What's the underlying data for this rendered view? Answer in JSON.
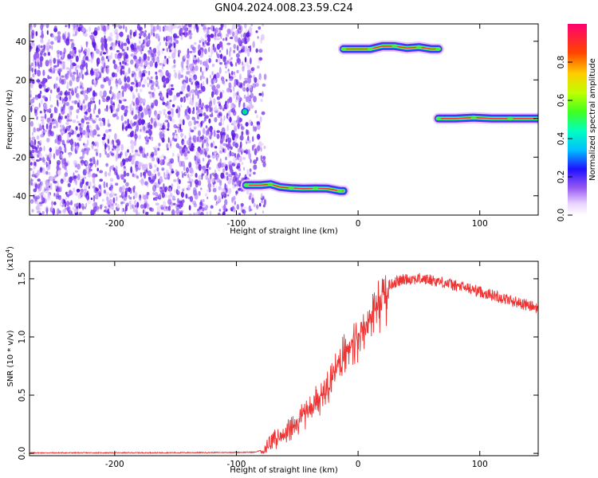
{
  "figure": {
    "title": "GN04.2024.008.23.59.C24"
  },
  "chart_data": [
    {
      "type": "heatmap",
      "name": "spectrogram",
      "xlabel": "Height of straight line (km)",
      "ylabel": "Frequency (Hz)",
      "xlim": [
        -270,
        148
      ],
      "ylim": [
        -50,
        49
      ],
      "x_ticks": [
        -200,
        -100,
        0,
        100
      ],
      "y_ticks": [
        -40,
        -20,
        0,
        20,
        40
      ],
      "noise_region": {
        "x_range": [
          -270,
          -88
        ],
        "y_range": [
          -50,
          49
        ]
      },
      "tracks": [
        {
          "x_start": -92,
          "x_end": -12,
          "points": [
            [
              -92,
              -34.5
            ],
            [
              -80,
              -34.5
            ],
            [
              -72,
              -34
            ],
            [
              -64,
              -35.5
            ],
            [
              -55,
              -36
            ],
            [
              -45,
              -36.3
            ],
            [
              -35,
              -36.2
            ],
            [
              -25,
              -36.3
            ],
            [
              -15,
              -37.5
            ],
            [
              -12,
              -37.5
            ]
          ]
        },
        {
          "x_start": -12,
          "x_end": 66,
          "points": [
            [
              -12,
              36
            ],
            [
              0,
              36
            ],
            [
              10,
              36
            ],
            [
              20,
              37.5
            ],
            [
              30,
              37.5
            ],
            [
              40,
              36.5
            ],
            [
              50,
              37
            ],
            [
              60,
              36
            ],
            [
              66,
              36
            ]
          ]
        },
        {
          "x_start": 66,
          "x_end": 148,
          "points": [
            [
              66,
              0
            ],
            [
              80,
              0
            ],
            [
              95,
              0.5
            ],
            [
              110,
              0
            ],
            [
              125,
              0
            ],
            [
              140,
              0
            ],
            [
              148,
              0
            ]
          ]
        }
      ],
      "markers": [
        {
          "x": -93,
          "y": 3.5
        }
      ],
      "colorbar": {
        "label": "Normalized spectral amplitude",
        "range": [
          0,
          1
        ],
        "ticks": [
          0.0,
          0.2,
          0.4,
          0.6,
          0.8
        ]
      }
    },
    {
      "type": "line",
      "name": "snr",
      "xlabel": "Height of straight line (km)",
      "ylabel": "SNR (10 * v/v)",
      "y_exponent_label": "(x10",
      "y_exponent": "4",
      "y_exponent_close": ")",
      "color": "#ee3333",
      "xlim": [
        -270,
        148
      ],
      "ylim": [
        -0.02,
        1.65
      ],
      "x_ticks": [
        -200,
        -100,
        0,
        100
      ],
      "y_ticks": [
        0.0,
        0.5,
        1.0,
        1.5
      ],
      "points": [
        [
          -270,
          0.005
        ],
        [
          -200,
          0.005
        ],
        [
          -150,
          0.006
        ],
        [
          -110,
          0.008
        ],
        [
          -85,
          0.01
        ],
        [
          -78,
          0.03
        ],
        [
          -72,
          0.1
        ],
        [
          -68,
          0.15
        ],
        [
          -62,
          0.18
        ],
        [
          -55,
          0.25
        ],
        [
          -48,
          0.32
        ],
        [
          -42,
          0.38
        ],
        [
          -35,
          0.48
        ],
        [
          -28,
          0.55
        ],
        [
          -22,
          0.68
        ],
        [
          -15,
          0.82
        ],
        [
          -8,
          0.95
        ],
        [
          0,
          1.05
        ],
        [
          5,
          1.12
        ],
        [
          10,
          1.2
        ],
        [
          15,
          1.3
        ],
        [
          20,
          1.38
        ],
        [
          25,
          1.44
        ],
        [
          30,
          1.47
        ],
        [
          40,
          1.5
        ],
        [
          50,
          1.5
        ],
        [
          60,
          1.49
        ],
        [
          70,
          1.47
        ],
        [
          80,
          1.44
        ],
        [
          90,
          1.42
        ],
        [
          100,
          1.39
        ],
        [
          110,
          1.36
        ],
        [
          120,
          1.33
        ],
        [
          130,
          1.3
        ],
        [
          140,
          1.27
        ],
        [
          148,
          1.25
        ]
      ]
    }
  ]
}
